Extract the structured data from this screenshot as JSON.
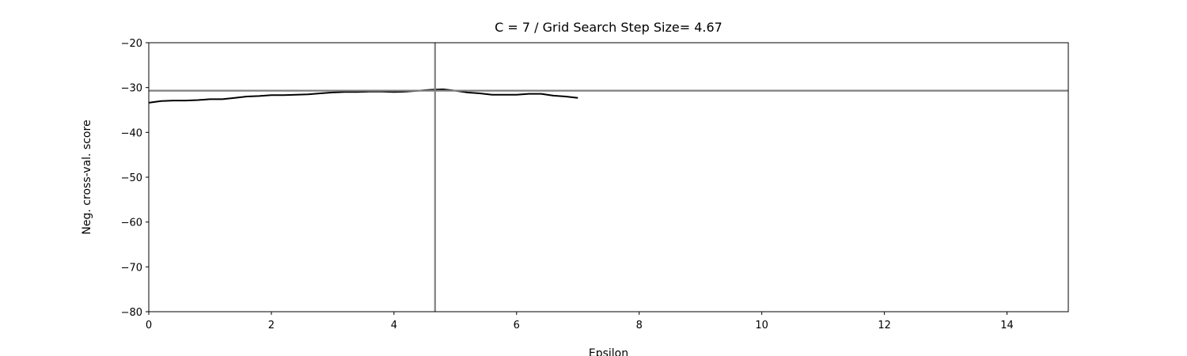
{
  "chart_data": {
    "type": "line",
    "title": "C = 7 / Grid Search Step Size= 4.67",
    "xlabel": "Epsilon",
    "ylabel": "Neg. cross-val. score",
    "xlim": [
      0,
      15
    ],
    "ylim": [
      -80,
      -20
    ],
    "xticks": [
      0,
      2,
      4,
      6,
      8,
      10,
      12,
      14
    ],
    "yticks": [
      -20,
      -30,
      -40,
      -50,
      -60,
      -70,
      -80
    ],
    "grid": false,
    "series": [
      {
        "color": "#000000",
        "x": [
          0,
          0.2,
          0.4,
          0.6,
          0.8,
          1.0,
          1.2,
          1.4,
          1.6,
          1.8,
          2.0,
          2.2,
          2.4,
          2.6,
          2.8,
          3.0,
          3.2,
          3.4,
          3.6,
          3.8,
          4.0,
          4.2,
          4.4,
          4.6,
          4.8,
          5.0,
          5.2,
          5.4,
          5.6,
          5.8,
          6.0,
          6.2,
          6.4,
          6.6,
          6.8,
          7.0
        ],
        "y": [
          -33.4,
          -33.0,
          -32.9,
          -32.9,
          -32.8,
          -32.6,
          -32.6,
          -32.3,
          -32.0,
          -31.9,
          -31.7,
          -31.7,
          -31.6,
          -31.5,
          -31.3,
          -31.1,
          -31.0,
          -31.0,
          -30.9,
          -30.9,
          -31.0,
          -30.9,
          -30.7,
          -30.5,
          -30.4,
          -30.7,
          -31.1,
          -31.3,
          -31.6,
          -31.6,
          -31.6,
          -31.4,
          -31.4,
          -31.8,
          -32.0,
          -32.3
        ]
      }
    ],
    "reference_lines": [
      {
        "orientation": "vertical",
        "value": 4.67,
        "color": "#808080"
      },
      {
        "orientation": "horizontal",
        "value": -30.7,
        "color": "#808080"
      }
    ]
  }
}
